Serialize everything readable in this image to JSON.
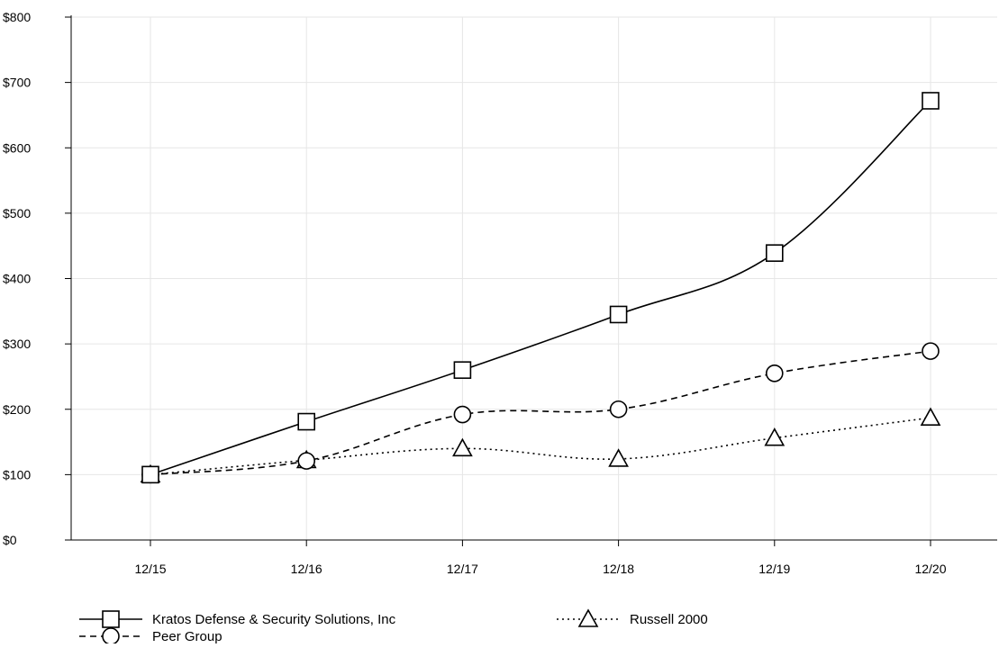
{
  "chart_data": {
    "type": "line",
    "categories": [
      "12/15",
      "12/16",
      "12/17",
      "12/18",
      "12/19",
      "12/20"
    ],
    "ylim": [
      0,
      800
    ],
    "yticks": [
      0,
      100,
      200,
      300,
      400,
      500,
      600,
      700,
      800
    ],
    "ytick_labels": [
      "$0",
      "$100",
      "$200",
      "$300",
      "$400",
      "$500",
      "$600",
      "$700",
      "$800"
    ],
    "grid": true,
    "legend_position": "bottom",
    "series": [
      {
        "name": "Kratos Defense & Security Solutions, Inc",
        "values": [
          100,
          181,
          260,
          345,
          439,
          672
        ],
        "marker": "square",
        "line_style": "solid",
        "color": "#000000"
      },
      {
        "name": "Peer Group",
        "values": [
          100,
          121,
          192,
          200,
          255,
          289
        ],
        "marker": "circle",
        "line_style": "dashed",
        "color": "#000000"
      },
      {
        "name": "Russell 2000",
        "values": [
          100,
          122,
          140,
          124,
          156,
          187
        ],
        "marker": "triangle",
        "line_style": "dotted",
        "color": "#000000"
      }
    ]
  }
}
